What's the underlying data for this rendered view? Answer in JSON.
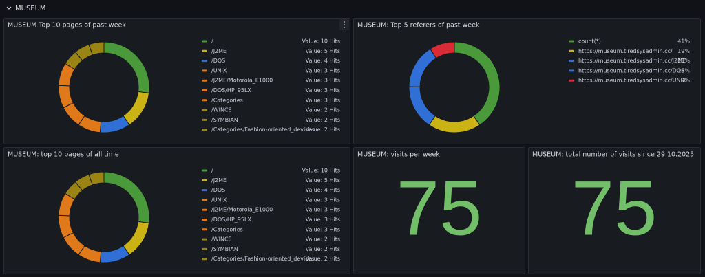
{
  "section": "MUSEUM",
  "chart_data": [
    {
      "type": "donut",
      "title": "MUSEUM Top 10 pages of past week",
      "categories": [
        "/",
        "/J2ME",
        "/DOS",
        "/UNIX",
        "/J2ME/Motorola_E1000",
        "/DOS/HP_95LX",
        "/Categories",
        "/WINCE",
        "/SYMBIAN",
        "/Categories/Fashion-oriented_devices"
      ],
      "values": [
        10,
        5,
        4,
        3,
        3,
        3,
        3,
        2,
        2,
        2
      ],
      "value_labels": [
        "Value: 10 Hits",
        "Value: 5 Hits",
        "Value: 4 Hits",
        "Value: 3 Hits",
        "Value: 3 Hits",
        "Value: 3 Hits",
        "Value: 3 Hits",
        "Value: 2 Hits",
        "Value: 2 Hits",
        "Value: 2 Hits"
      ],
      "colors": [
        "#4a9a3c",
        "#cbb315",
        "#2f6fd6",
        "#e0791a",
        "#e0791a",
        "#e0791a",
        "#e0791a",
        "#9a8414",
        "#9a8414",
        "#9a8414"
      ]
    },
    {
      "type": "donut",
      "title": "MUSEUM: Top 5 referers of past week",
      "categories": [
        "count(*)",
        "https://museum.tiredsysadmin.cc/",
        "https://museum.tiredsysadmin.cc/J2ME",
        "https://museum.tiredsysadmin.cc/DOS",
        "https://museum.tiredsysadmin.cc/UNIX"
      ],
      "values": [
        41,
        19,
        16,
        16,
        9
      ],
      "value_labels": [
        "41%",
        "19%",
        "16%",
        "16%",
        "9%"
      ],
      "colors": [
        "#4a9a3c",
        "#cbb315",
        "#2f6fd6",
        "#2f6fd6",
        "#d92b35"
      ]
    },
    {
      "type": "donut",
      "title": "MUSEUM: top 10 pages of all time",
      "categories": [
        "/",
        "/J2ME",
        "/DOS",
        "/UNIX",
        "/J2ME/Motorola_E1000",
        "/DOS/HP_95LX",
        "/Categories",
        "/WINCE",
        "/SYMBIAN",
        "/Categories/Fashion-oriented_devices"
      ],
      "values": [
        10,
        5,
        4,
        3,
        3,
        3,
        3,
        2,
        2,
        2
      ],
      "value_labels": [
        "Value: 10 Hits",
        "Value: 5 Hits",
        "Value: 4 Hits",
        "Value: 3 Hits",
        "Value: 3 Hits",
        "Value: 3 Hits",
        "Value: 3 Hits",
        "Value: 2 Hits",
        "Value: 2 Hits",
        "Value: 2 Hits"
      ],
      "colors": [
        "#4a9a3c",
        "#cbb315",
        "#2f6fd6",
        "#e0791a",
        "#e0791a",
        "#e0791a",
        "#e0791a",
        "#9a8414",
        "#9a8414",
        "#9a8414"
      ]
    }
  ],
  "stats": [
    {
      "title": "MUSEUM: visits per week",
      "value": 75,
      "color": "#73bf69"
    },
    {
      "title": "MUSEUM: total number of visits since 29.10.2025",
      "value": 75,
      "color": "#73bf69"
    }
  ]
}
